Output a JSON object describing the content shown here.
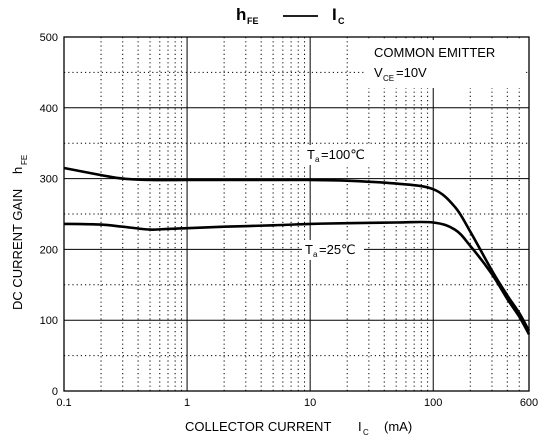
{
  "chart_data": {
    "type": "line",
    "title": {
      "left_main": "h",
      "left_sub": "FE",
      "right_main": "I",
      "right_sub": "C"
    },
    "xlabel": {
      "text": "COLLECTOR CURRENT",
      "symbol": "I",
      "symbol_sub": "C",
      "unit": "(mA)"
    },
    "ylabel": {
      "text": "DC CURRENT GAIN",
      "symbol": "h",
      "symbol_sub": "FE"
    },
    "x_scale": "log",
    "xlim": [
      0.1,
      600
    ],
    "ylim": [
      0,
      500
    ],
    "x_ticks": [
      {
        "value": 0.1,
        "label": "0.1"
      },
      {
        "value": 1,
        "label": "1"
      },
      {
        "value": 10,
        "label": "10"
      },
      {
        "value": 100,
        "label": "100"
      },
      {
        "value": 600,
        "label": "600"
      }
    ],
    "y_ticks": [
      {
        "value": 0,
        "label": "0"
      },
      {
        "value": 100,
        "label": "100"
      },
      {
        "value": 200,
        "label": "200"
      },
      {
        "value": 300,
        "label": "300"
      },
      {
        "value": 400,
        "label": "400"
      },
      {
        "value": 500,
        "label": "500"
      }
    ],
    "grid": true,
    "conditions": {
      "line1": "COMMON EMITTER",
      "line2_main": "V",
      "line2_sub": "CE",
      "line2_value": "=10V"
    },
    "series": [
      {
        "name": "Ta=100℃",
        "label_main": "T",
        "label_sub": "a",
        "label_value": "=100℃",
        "x": [
          0.1,
          0.2,
          0.3,
          0.5,
          1,
          2,
          5,
          10,
          20,
          50,
          100,
          150,
          200,
          300,
          400,
          500,
          600
        ],
        "y": [
          315,
          305,
          300,
          298,
          298,
          298,
          298,
          298,
          297,
          293,
          285,
          260,
          225,
          170,
          135,
          110,
          85
        ]
      },
      {
        "name": "Ta=25℃",
        "label_main": "T",
        "label_sub": "a",
        "label_value": "=25℃",
        "x": [
          0.1,
          0.2,
          0.3,
          0.5,
          0.7,
          1,
          2,
          5,
          10,
          20,
          50,
          100,
          150,
          200,
          300,
          400,
          500,
          600
        ],
        "y": [
          236,
          235,
          232,
          228,
          229,
          230,
          232,
          234,
          236,
          237,
          238,
          238,
          228,
          205,
          165,
          130,
          105,
          80
        ]
      }
    ]
  }
}
